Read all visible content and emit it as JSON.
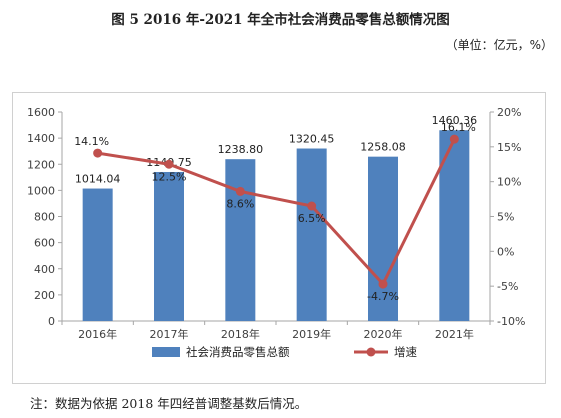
{
  "title": "图 5    2016 年-2021 年全市社会消费品零售总额情况图",
  "unit": "（单位：亿元，%）",
  "note": "注：数据为依据 2018 年四经普调整基数后情况。",
  "colors": {
    "bar": "#4f81bd",
    "line": "#c0504d",
    "axis": "#a6a6a6",
    "text": "#404040"
  },
  "chart_data": {
    "type": "bar",
    "categories": [
      "2016年",
      "2017年",
      "2018年",
      "2019年",
      "2020年",
      "2021年"
    ],
    "series": [
      {
        "name": "社会消费品零售总额",
        "type": "bar",
        "axis": "left",
        "values": [
          1014.04,
          1140.75,
          1238.8,
          1320.45,
          1258.08,
          1460.36
        ],
        "labels": [
          "1014.04",
          "1140.75",
          "1238.80",
          "1320.45",
          "1258.08",
          "1460.36"
        ]
      },
      {
        "name": "增速",
        "type": "line",
        "axis": "right",
        "values": [
          14.1,
          12.5,
          8.6,
          6.5,
          -4.7,
          16.1
        ],
        "labels": [
          "14.1%",
          "12.5%",
          "8.6%",
          "6.5%",
          "-4.7%",
          "16.1%"
        ]
      }
    ],
    "ylim": [
      0,
      1600
    ],
    "y_ticks": [
      "0",
      "200",
      "400",
      "600",
      "800",
      "1000",
      "1200",
      "1400",
      "1600"
    ],
    "y2lim": [
      -10,
      20
    ],
    "y2_ticks": [
      "-10%",
      "-5%",
      "0%",
      "5%",
      "10%",
      "15%",
      "20%"
    ],
    "grid": false,
    "legend": "bottom"
  }
}
